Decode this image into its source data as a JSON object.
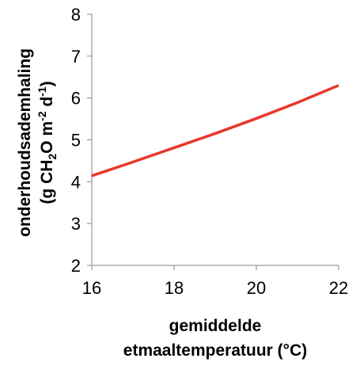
{
  "chart_data": {
    "type": "line",
    "x_ticks": [
      "16",
      "18",
      "20",
      "22"
    ],
    "y_ticks": [
      "2",
      "3",
      "4",
      "5",
      "6",
      "7",
      "8"
    ],
    "xlim": [
      16,
      22
    ],
    "ylim": [
      2,
      8
    ],
    "grid": false,
    "legend": "none",
    "xlabel_line1": "gemiddelde",
    "xlabel_line2": "etmaaltemperatuur",
    "xlabel_unit": "(°C)",
    "ylabel_line1": "onderhoudsademhaling",
    "ylabel_line2": "(g CH2O m-2 d-1)",
    "series": [
      {
        "color": "#e8372c",
        "x": [
          16,
          17,
          18,
          19,
          20,
          21,
          22
        ],
        "y": [
          4.14,
          4.47,
          4.81,
          5.15,
          5.51,
          5.89,
          6.3
        ]
      }
    ]
  }
}
